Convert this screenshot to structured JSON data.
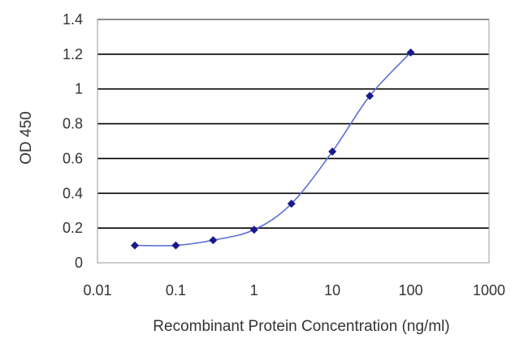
{
  "chart_data": {
    "type": "line",
    "title": "",
    "xlabel": "Recombinant Protein Concentration (ng/ml)",
    "ylabel": "OD 450",
    "x_scale": "log",
    "xlim": [
      0.01,
      1000
    ],
    "ylim": [
      0,
      1.4
    ],
    "x_ticks": [
      "0.01",
      "0.1",
      "1",
      "10",
      "100",
      "1000"
    ],
    "y_ticks": [
      "0",
      "0.2",
      "0.4",
      "0.6",
      "0.8",
      "1",
      "1.2",
      "1.4"
    ],
    "grid": "horizontal",
    "legend": "none",
    "series": [
      {
        "x": [
          0.03,
          0.1,
          0.3,
          1,
          3,
          10,
          30,
          100
        ],
        "y": [
          0.1,
          0.1,
          0.13,
          0.19,
          0.34,
          0.64,
          0.96,
          1.21
        ]
      }
    ],
    "colors": {
      "line": "#5a6fd6",
      "marker": "#1a1a8c",
      "grid": "#000000",
      "axis": "#999999"
    }
  }
}
